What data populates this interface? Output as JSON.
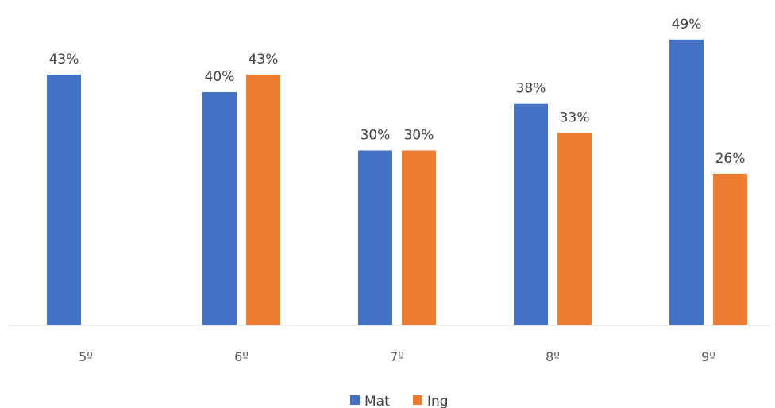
{
  "chart_data": {
    "type": "bar",
    "categories": [
      "5º",
      "6º",
      "7º",
      "8º",
      "9º"
    ],
    "series": [
      {
        "name": "Mat",
        "color": "#4472C4",
        "values": [
          43,
          40,
          30,
          38,
          49
        ],
        "labels": [
          "43%",
          "40%",
          "30%",
          "38%",
          "49%"
        ]
      },
      {
        "name": "Ing",
        "color": "#ED7D31",
        "values": [
          null,
          43,
          30,
          33,
          26
        ],
        "labels": [
          "",
          "43%",
          "30%",
          "33%",
          "26%"
        ]
      }
    ],
    "ylim": [
      0,
      55
    ],
    "grid": false,
    "legend": "bottom-center"
  }
}
